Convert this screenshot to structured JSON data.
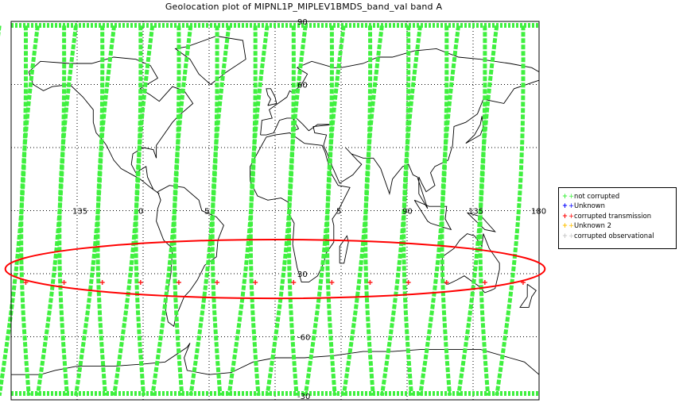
{
  "title": "Geolocation plot of MIPNL1P_MIPLEV1BMDS_band_val band A",
  "colors": {
    "track": "#3ff03f",
    "marker": "#ff2020",
    "highlight_ellipse": "#ff0000",
    "coastline": "#000000",
    "grid": "#000000",
    "unknown": "#0000ff",
    "unknown2": "#ffc000",
    "observational": "#c8c8c8"
  },
  "map": {
    "projection": "cylindrical",
    "lon_range": [
      -180,
      180
    ],
    "lat_range": [
      -90,
      90
    ],
    "lon_grid": [
      -135,
      -90,
      -45,
      0,
      45,
      90,
      135
    ],
    "lat_grid": [
      -60,
      -30,
      0,
      30,
      60
    ],
    "lon_labels": [
      {
        "lon": -135,
        "text": "135"
      },
      {
        "lon": -90,
        "text": "0"
      },
      {
        "lon": -45,
        "text": "5"
      },
      {
        "lon": 45,
        "text": "5"
      },
      {
        "lon": 90,
        "text": "90"
      },
      {
        "lon": 135,
        "text": "135"
      },
      {
        "lon": 180,
        "text": "180"
      }
    ],
    "lat_labels": [
      {
        "lat": 90,
        "text": "90"
      },
      {
        "lat": 60,
        "text": "60"
      },
      {
        "lat": -30,
        "text": "30"
      },
      {
        "lat": -60,
        "text": "-60"
      },
      {
        "lat": -90,
        "text": "-30"
      }
    ],
    "orbit_tracks": {
      "count": 14,
      "markers_latitude": -30
    },
    "highlight": {
      "center_lon": 0,
      "center_lat": -27,
      "lon_half_width": 184,
      "lat_half_height": 14
    }
  },
  "legend": [
    {
      "symbol": "+",
      "label": "+not corrupted",
      "color": "#3ff03f"
    },
    {
      "symbol": "+",
      "label": "+Unknown",
      "color": "#0000ff"
    },
    {
      "symbol": "+",
      "label": "+corrupted transmission",
      "color": "#ff0000"
    },
    {
      "symbol": "+",
      "label": "+Unknown 2",
      "color": "#ffc000"
    },
    {
      "symbol": "+",
      "label": "+corrupted observational",
      "color": "#c8c8c8"
    }
  ]
}
